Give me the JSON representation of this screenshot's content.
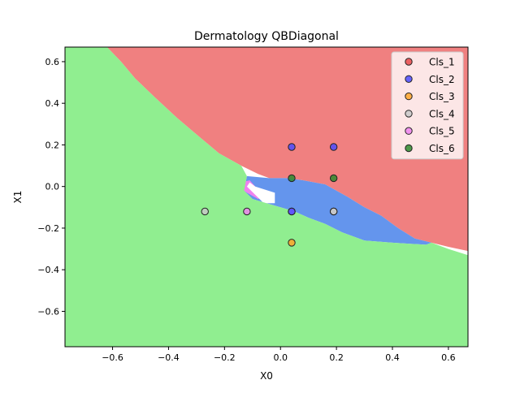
{
  "chart_data": {
    "type": "scatter",
    "title": "Dermatology QBDiagonal",
    "xlabel": "X0",
    "ylabel": "X1",
    "xlim": [
      -0.77,
      0.67
    ],
    "ylim": [
      -0.77,
      0.67
    ],
    "xticks": [
      -0.6,
      -0.4,
      -0.2,
      0.0,
      0.2,
      0.4,
      0.6
    ],
    "yticks": [
      -0.6,
      -0.4,
      -0.2,
      0.0,
      0.2,
      0.4,
      0.6
    ],
    "xtick_labels": [
      "−0.6",
      "−0.4",
      "−0.2",
      "0.0",
      "0.2",
      "0.4",
      "0.6"
    ],
    "ytick_labels": [
      "−0.6",
      "−0.4",
      "−0.2",
      "0.0",
      "0.2",
      "0.4",
      "0.6"
    ],
    "grid": false,
    "legend_position": "top-right",
    "decision_regions": [
      {
        "class": "Cls_1",
        "color": "#f08080",
        "polygon": [
          [
            -0.62,
            0.67
          ],
          [
            -0.57,
            0.6
          ],
          [
            -0.52,
            0.52
          ],
          [
            -0.45,
            0.43
          ],
          [
            -0.37,
            0.33
          ],
          [
            -0.3,
            0.25
          ],
          [
            -0.22,
            0.16
          ],
          [
            -0.14,
            0.1
          ],
          [
            -0.08,
            0.06
          ],
          [
            -0.04,
            0.04
          ],
          [
            0.02,
            0.04
          ],
          [
            0.08,
            0.03
          ],
          [
            0.16,
            0.01
          ],
          [
            0.24,
            -0.05
          ],
          [
            0.3,
            -0.1
          ],
          [
            0.36,
            -0.14
          ],
          [
            0.42,
            -0.2
          ],
          [
            0.48,
            -0.25
          ],
          [
            0.54,
            -0.27
          ],
          [
            0.6,
            -0.29
          ],
          [
            0.67,
            -0.31
          ],
          [
            0.67,
            0.67
          ]
        ]
      },
      {
        "class": "Cls_2",
        "color": "#6495ed",
        "polygon": [
          [
            -0.12,
            0.05
          ],
          [
            -0.04,
            0.04
          ],
          [
            0.02,
            0.04
          ],
          [
            0.08,
            0.03
          ],
          [
            0.16,
            0.01
          ],
          [
            0.24,
            -0.05
          ],
          [
            0.3,
            -0.1
          ],
          [
            0.36,
            -0.14
          ],
          [
            0.42,
            -0.2
          ],
          [
            0.48,
            -0.25
          ],
          [
            0.54,
            -0.27
          ],
          [
            0.52,
            -0.28
          ],
          [
            0.4,
            -0.27
          ],
          [
            0.3,
            -0.26
          ],
          [
            0.22,
            -0.22
          ],
          [
            0.16,
            -0.18
          ],
          [
            0.1,
            -0.15
          ],
          [
            0.05,
            -0.12
          ],
          [
            0.0,
            -0.1
          ],
          [
            -0.05,
            -0.08
          ],
          [
            -0.1,
            -0.06
          ],
          [
            -0.13,
            -0.02
          ]
        ]
      },
      {
        "class": "Cls_5",
        "color": "#ee82ee",
        "polygon": [
          [
            -0.14,
            0.02
          ],
          [
            -0.11,
            0.03
          ],
          [
            -0.09,
            0.0
          ],
          [
            -0.06,
            -0.04
          ],
          [
            -0.08,
            -0.06
          ],
          [
            -0.12,
            -0.03
          ],
          [
            -0.15,
            0.0
          ]
        ]
      },
      {
        "class": "Cls_4",
        "color": "#ffffff",
        "polygon": [
          [
            -0.11,
            0.02
          ],
          [
            -0.09,
            0.0
          ],
          [
            -0.02,
            -0.03
          ],
          [
            -0.02,
            -0.08
          ],
          [
            -0.06,
            -0.08
          ],
          [
            -0.12,
            0.0
          ]
        ]
      },
      {
        "class": "Cls_6",
        "color": "#90ee90",
        "polygon": [
          [
            -0.77,
            0.67
          ],
          [
            -0.62,
            0.67
          ],
          [
            -0.57,
            0.6
          ],
          [
            -0.52,
            0.52
          ],
          [
            -0.45,
            0.43
          ],
          [
            -0.37,
            0.33
          ],
          [
            -0.3,
            0.25
          ],
          [
            -0.22,
            0.16
          ],
          [
            -0.14,
            0.1
          ],
          [
            -0.12,
            0.05
          ],
          [
            -0.13,
            -0.02
          ],
          [
            -0.1,
            -0.06
          ],
          [
            -0.05,
            -0.08
          ],
          [
            0.0,
            -0.1
          ],
          [
            0.05,
            -0.12
          ],
          [
            0.1,
            -0.15
          ],
          [
            0.16,
            -0.18
          ],
          [
            0.22,
            -0.22
          ],
          [
            0.3,
            -0.26
          ],
          [
            0.4,
            -0.27
          ],
          [
            0.52,
            -0.28
          ],
          [
            0.54,
            -0.27
          ],
          [
            0.6,
            -0.3
          ],
          [
            0.67,
            -0.33
          ],
          [
            0.67,
            -0.77
          ],
          [
            -0.77,
            -0.77
          ]
        ]
      }
    ],
    "series": [
      {
        "name": "Cls_1",
        "color": "#e8484a",
        "points": []
      },
      {
        "name": "Cls_2",
        "color": "#4b4bff",
        "points": [
          [
            0.04,
            0.19
          ],
          [
            0.19,
            0.19
          ]
        ]
      },
      {
        "name": "Cls_3",
        "color": "#ffa529",
        "points": [
          [
            0.04,
            -0.27
          ]
        ]
      },
      {
        "name": "Cls_4",
        "color": "#c8c8c8",
        "points": [
          [
            -0.27,
            -0.12
          ],
          [
            0.19,
            -0.12
          ]
        ]
      },
      {
        "name": "Cls_5",
        "color": "#ee82ee",
        "points": [
          [
            -0.12,
            -0.12
          ],
          [
            0.04,
            -0.12
          ]
        ]
      },
      {
        "name": "Cls_6",
        "color": "#2e8b2e",
        "points": [
          [
            0.04,
            0.04
          ],
          [
            0.19,
            0.04
          ]
        ]
      }
    ],
    "overlaid_points": [
      {
        "series": "Cls_2",
        "points": [
          [
            0.04,
            -0.12
          ]
        ]
      },
      {
        "series": "Cls_4",
        "points": [
          [
            0.19,
            -0.12
          ]
        ]
      }
    ]
  }
}
